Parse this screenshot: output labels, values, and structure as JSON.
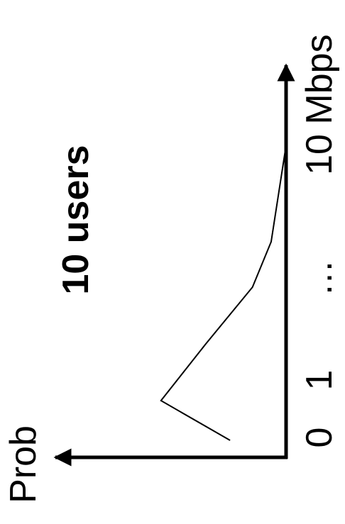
{
  "chart_data": {
    "type": "line",
    "title": "10 users",
    "xlabel": "Mbps",
    "ylabel": "Prob",
    "x_tick_labels": [
      "0",
      "1",
      "…",
      "10"
    ],
    "x": [
      0.3,
      1,
      2,
      3,
      3.8,
      5.5
    ],
    "values": [
      0.3,
      0.67,
      0.43,
      0.18,
      0.08,
      0.0
    ],
    "xlim": [
      0,
      5.5
    ],
    "ylim": [
      0,
      1
    ],
    "orientation": "rotated-90-ccw",
    "grid": false,
    "legend": "none",
    "line_color": "#000000",
    "axis_color": "#000000"
  }
}
